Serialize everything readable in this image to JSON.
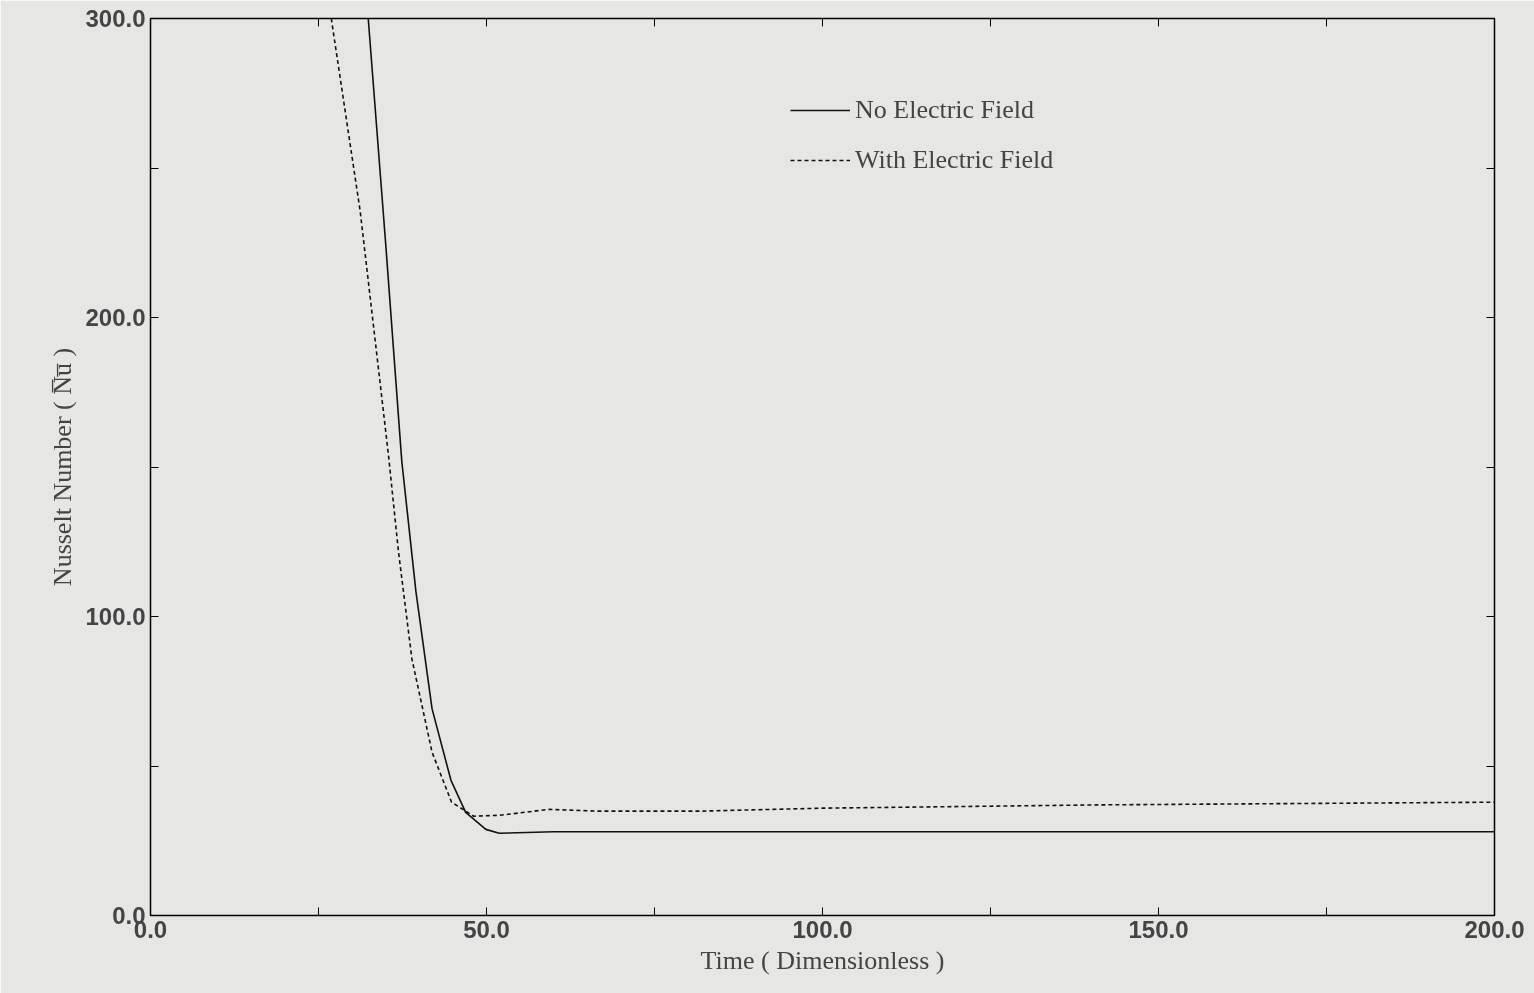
{
  "chart_data": {
    "type": "line",
    "xlabel": "Time ( Dimensionless )",
    "ylabel": "Nusselt Number ( N̅u̅ )",
    "xlim": [
      0,
      200
    ],
    "ylim": [
      0,
      300
    ],
    "xticks": [
      {
        "value": 0,
        "label": "0.0"
      },
      {
        "value": 25,
        "label": null
      },
      {
        "value": 50,
        "label": "50.0"
      },
      {
        "value": 75,
        "label": null
      },
      {
        "value": 100,
        "label": "100.0"
      },
      {
        "value": 125,
        "label": null
      },
      {
        "value": 150,
        "label": "150.0"
      },
      {
        "value": 175,
        "label": null
      },
      {
        "value": 200,
        "label": "200.0"
      }
    ],
    "yticks": [
      {
        "value": 0,
        "label": "0.0"
      },
      {
        "value": 50,
        "label": null
      },
      {
        "value": 100,
        "label": "100.0"
      },
      {
        "value": 150,
        "label": null
      },
      {
        "value": 200,
        "label": "200.0"
      },
      {
        "value": 250,
        "label": null
      },
      {
        "value": 300,
        "label": "300.0"
      }
    ],
    "grid": false,
    "legend": "top right",
    "series": [
      {
        "name": "No Electric Field",
        "color": "#111111",
        "line_style": "solid",
        "x": [
          32.4,
          35.0,
          37.4,
          39.5,
          41.9,
          44.7,
          46.9,
          49.9,
          51.9,
          60,
          80,
          100,
          150,
          200
        ],
        "values": [
          300,
          224.6,
          151.8,
          108.3,
          69.1,
          45.3,
          34.5,
          28.8,
          27.5,
          28,
          28,
          28,
          28,
          28
        ]
      },
      {
        "name": "With Electric Field",
        "color": "#111111",
        "line_style": "dashed",
        "x": [
          26.9,
          31.2,
          35.4,
          36.9,
          38.9,
          41.9,
          44.8,
          48.1,
          51.9,
          59.3,
          66.8,
          81.8,
          100,
          141.5,
          200
        ],
        "values": [
          300,
          235.6,
          154.2,
          121.7,
          85.8,
          54.6,
          37.9,
          33.2,
          33.5,
          35.5,
          34.9,
          34.9,
          35.9,
          37.0,
          37.9
        ]
      }
    ]
  }
}
